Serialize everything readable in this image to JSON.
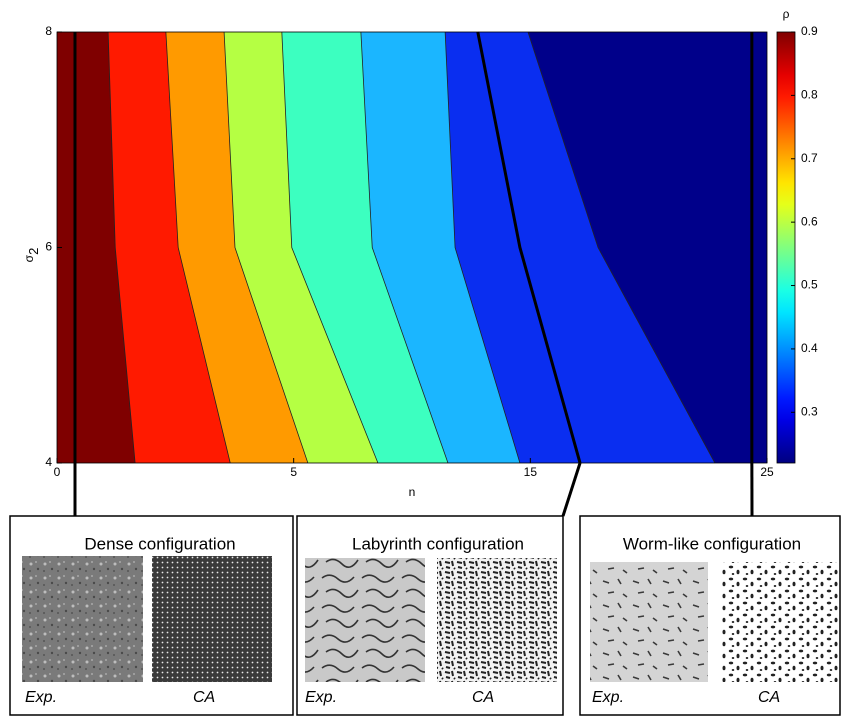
{
  "chart_data": {
    "type": "contour",
    "x_label": "n",
    "y_label": "σ",
    "y_label_sub": "2",
    "categories": [
      "0",
      null,
      null,
      null,
      null,
      "5",
      null,
      null,
      null,
      null,
      "15",
      null,
      null,
      null,
      null,
      "25"
    ],
    "ylim": [
      4,
      8
    ],
    "yticks": [
      4,
      6,
      8
    ],
    "boundary_y": [
      8,
      6,
      4
    ],
    "boundaries": [
      [
        1.08,
        1.23,
        1.65
      ],
      [
        2.3,
        2.56,
        3.66
      ],
      [
        3.53,
        3.76,
        5.3
      ],
      [
        4.75,
        4.96,
        6.78
      ],
      [
        6.42,
        6.66,
        8.26
      ],
      [
        8.2,
        8.41,
        9.78
      ],
      [
        9.95,
        11.43,
        13.9
      ]
    ],
    "fill_colors": [
      "#7f0000",
      "#ff1a00",
      "#ff9a00",
      "#b5ff43",
      "#3cffc0",
      "#1bb6ff",
      "#0a2ef0",
      "#00008a"
    ],
    "black_lines": [
      [
        0.38,
        0.38,
        0.38
      ],
      [
        8.89,
        9.78,
        11.05
      ],
      [
        14.68,
        14.68,
        14.68
      ]
    ],
    "colorbar": {
      "label": "ρ",
      "clim": [
        0.22,
        0.9
      ],
      "ticks": [
        0.3,
        0.4,
        0.5,
        0.6,
        0.7,
        0.8,
        0.9
      ],
      "colormap": "jet"
    },
    "panels": [
      {
        "title": "Dense configuration",
        "labels": [
          "Exp.",
          "CA"
        ]
      },
      {
        "title": "Labyrinth configuration",
        "labels": [
          "Exp.",
          "CA"
        ]
      },
      {
        "title": "Worm-like configuration",
        "labels": [
          "Exp.",
          "CA"
        ]
      }
    ]
  }
}
